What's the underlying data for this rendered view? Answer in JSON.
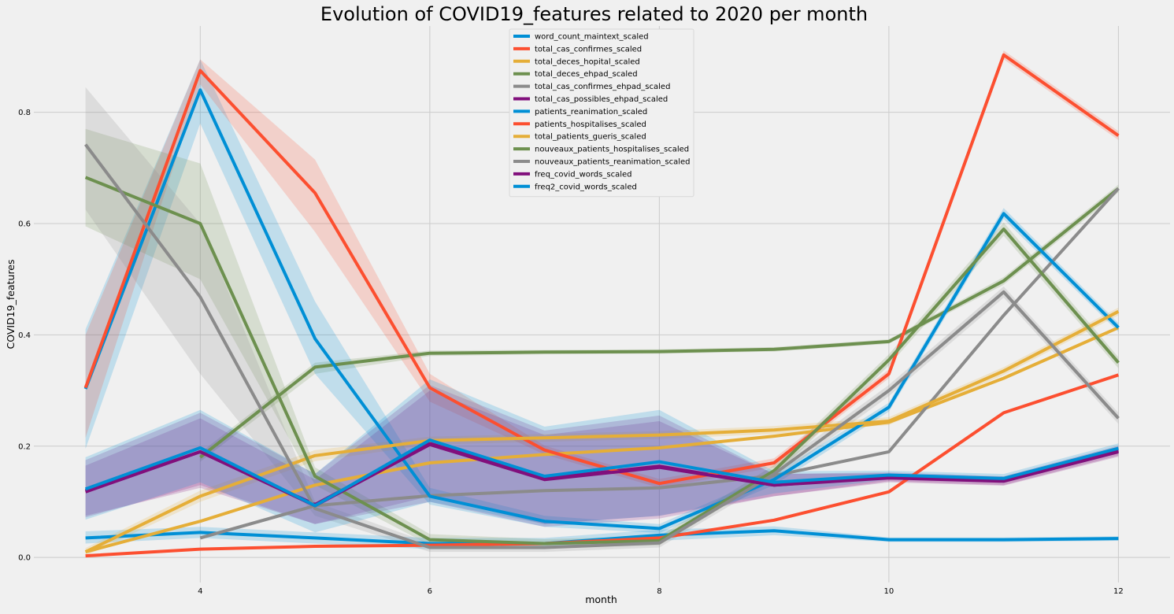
{
  "chart_data": {
    "type": "line",
    "title": "Evolution of COVID19_features related to 2020 per month",
    "xlabel": "month",
    "ylabel": "COVID19_features",
    "xlim": [
      2.55,
      12.45
    ],
    "ylim": [
      -0.045,
      0.955
    ],
    "xticks": [
      4,
      6,
      8,
      10,
      12
    ],
    "yticks": [
      0.0,
      0.2,
      0.4,
      0.6,
      0.8
    ],
    "grid": true,
    "legend_position": "upper center",
    "x": [
      3,
      4,
      5,
      6,
      7,
      8,
      9,
      10,
      11,
      12
    ],
    "series": [
      {
        "name": "word_count_maintext_scaled",
        "color": "#008fd5",
        "values": [
          0.035,
          0.045,
          0.035,
          0.025,
          0.025,
          0.04,
          0.048,
          0.032,
          0.032,
          0.034
        ],
        "ci": [
          [
            0.025,
            0.047
          ],
          [
            0.035,
            0.055
          ],
          [
            0.025,
            0.045
          ],
          [
            0.015,
            0.035
          ],
          [
            0.015,
            0.035
          ],
          [
            0.03,
            0.05
          ],
          [
            0.04,
            0.056
          ],
          [
            0.028,
            0.036
          ],
          [
            0.028,
            0.036
          ],
          [
            0.03,
            0.038
          ]
        ]
      },
      {
        "name": "total_cas_confirmes_scaled",
        "color": "#fc4f30",
        "values": [
          0.003,
          0.015,
          0.02,
          0.022,
          0.025,
          0.035,
          0.067,
          0.118,
          0.26,
          0.328
        ],
        "ci": null
      },
      {
        "name": "total_deces_hopital_scaled",
        "color": "#e5ae38",
        "values": [
          0.01,
          0.065,
          0.13,
          0.17,
          0.185,
          0.197,
          0.218,
          0.243,
          0.322,
          0.413
        ],
        "ci": null
      },
      {
        "name": "total_deces_ehpad_scaled",
        "color": "#6d904f",
        "values": [
          null,
          0.18,
          0.342,
          0.367,
          0.369,
          0.37,
          0.374,
          0.388,
          0.497,
          0.663
        ],
        "ci": [
          null,
          [
            0.172,
            0.188
          ],
          [
            0.33,
            0.35
          ],
          [
            0.362,
            0.372
          ],
          [
            0.365,
            0.373
          ],
          [
            0.366,
            0.374
          ],
          [
            0.37,
            0.378
          ],
          [
            0.384,
            0.392
          ],
          [
            0.49,
            0.504
          ],
          [
            0.656,
            0.67
          ]
        ]
      },
      {
        "name": "total_cas_confirmes_ehpad_scaled",
        "color": "#8b8b8b",
        "values": [
          null,
          0.035,
          0.093,
          0.111,
          0.12,
          0.125,
          0.147,
          0.19,
          0.435,
          0.663
        ],
        "ci": null
      },
      {
        "name": "total_cas_possibles_ehpad_scaled",
        "color": "#810f7c",
        "values": [
          0.12,
          0.19,
          0.095,
          0.205,
          0.142,
          0.164,
          0.13,
          0.145,
          0.138,
          0.192
        ],
        "ci": [
          [
            0.072,
            0.175
          ],
          [
            0.13,
            0.26
          ],
          [
            0.06,
            0.15
          ],
          [
            0.1,
            0.31
          ],
          [
            0.055,
            0.228
          ],
          [
            0.07,
            0.255
          ],
          [
            0.11,
            0.15
          ],
          [
            0.137,
            0.153
          ],
          [
            0.13,
            0.146
          ],
          [
            0.183,
            0.201
          ]
        ]
      },
      {
        "name": "patients_reanimation_scaled",
        "color": "#008fd5",
        "values": [
          0.303,
          0.84,
          0.393,
          0.11,
          0.065,
          0.052,
          0.14,
          0.27,
          0.618,
          0.413
        ],
        "ci": [
          [
            0.195,
            0.41
          ],
          [
            0.78,
            0.895
          ],
          [
            0.33,
            0.46
          ],
          [
            0.095,
            0.125
          ],
          [
            0.055,
            0.075
          ],
          [
            0.044,
            0.06
          ],
          [
            0.13,
            0.15
          ],
          [
            0.262,
            0.278
          ],
          [
            0.608,
            0.628
          ],
          [
            0.405,
            0.421
          ]
        ]
      },
      {
        "name": "patients_hospitalises_scaled",
        "color": "#fc4f30",
        "values": [
          0.305,
          0.875,
          0.655,
          0.305,
          0.193,
          0.133,
          0.17,
          0.33,
          0.903,
          0.758
        ],
        "ci": [
          [
            0.215,
            0.4
          ],
          [
            0.85,
            0.895
          ],
          [
            0.585,
            0.715
          ],
          [
            0.28,
            0.33
          ],
          [
            0.185,
            0.201
          ],
          [
            0.125,
            0.141
          ],
          [
            0.162,
            0.178
          ],
          [
            0.322,
            0.338
          ],
          [
            0.895,
            0.911
          ],
          [
            0.75,
            0.766
          ]
        ]
      },
      {
        "name": "total_patients_gueris_scaled",
        "color": "#e5ae38",
        "values": [
          0.01,
          0.11,
          0.183,
          0.21,
          0.215,
          0.22,
          0.229,
          0.245,
          0.335,
          0.442
        ],
        "ci": [
          [
            0.003,
            0.017
          ],
          [
            0.1,
            0.12
          ],
          [
            0.173,
            0.193
          ],
          [
            0.203,
            0.217
          ],
          [
            0.208,
            0.222
          ],
          [
            0.213,
            0.227
          ],
          [
            0.222,
            0.236
          ],
          [
            0.238,
            0.252
          ],
          [
            0.328,
            0.342
          ],
          [
            0.435,
            0.449
          ]
        ]
      },
      {
        "name": "nouveaux_patients_hospitalises_scaled",
        "color": "#6d904f",
        "values": [
          0.683,
          0.6,
          0.146,
          0.032,
          0.025,
          0.03,
          0.156,
          0.355,
          0.59,
          0.35
        ],
        "ci": [
          [
            0.595,
            0.77
          ],
          [
            0.5,
            0.708
          ],
          [
            0.13,
            0.162
          ],
          [
            0.022,
            0.042
          ],
          [
            0.017,
            0.033
          ],
          [
            0.022,
            0.038
          ],
          [
            0.146,
            0.166
          ],
          [
            0.345,
            0.365
          ],
          [
            0.578,
            0.602
          ],
          [
            0.34,
            0.36
          ]
        ]
      },
      {
        "name": "nouveaux_patients_reanimation_scaled",
        "color": "#8b8b8b",
        "values": [
          0.742,
          0.468,
          0.088,
          0.018,
          0.018,
          0.026,
          0.15,
          0.3,
          0.477,
          0.25
        ],
        "ci": [
          [
            0.625,
            0.845
          ],
          [
            0.33,
            0.6
          ],
          [
            0.075,
            0.1
          ],
          [
            0.01,
            0.026
          ],
          [
            0.01,
            0.026
          ],
          [
            0.018,
            0.034
          ],
          [
            0.14,
            0.16
          ],
          [
            0.29,
            0.31
          ],
          [
            0.467,
            0.487
          ],
          [
            0.24,
            0.26
          ]
        ]
      },
      {
        "name": "freq_covid_words_scaled",
        "color": "#810f7c",
        "values": [
          0.118,
          0.19,
          0.093,
          0.203,
          0.14,
          0.162,
          0.13,
          0.143,
          0.137,
          0.19
        ],
        "ci": [
          [
            0.075,
            0.165
          ],
          [
            0.125,
            0.25
          ],
          [
            0.06,
            0.14
          ],
          [
            0.11,
            0.3
          ],
          [
            0.06,
            0.22
          ],
          [
            0.075,
            0.245
          ],
          [
            0.11,
            0.15
          ],
          [
            0.135,
            0.151
          ],
          [
            0.129,
            0.145
          ],
          [
            0.181,
            0.199
          ]
        ]
      },
      {
        "name": "freq2_covid_words_scaled",
        "color": "#008fd5",
        "values": [
          0.123,
          0.197,
          0.093,
          0.211,
          0.146,
          0.172,
          0.135,
          0.148,
          0.142,
          0.196
        ],
        "ci": [
          [
            0.068,
            0.18
          ],
          [
            0.135,
            0.265
          ],
          [
            0.045,
            0.15
          ],
          [
            0.1,
            0.32
          ],
          [
            0.06,
            0.235
          ],
          [
            0.075,
            0.265
          ],
          [
            0.115,
            0.155
          ],
          [
            0.14,
            0.156
          ],
          [
            0.134,
            0.15
          ],
          [
            0.187,
            0.205
          ]
        ]
      }
    ]
  }
}
